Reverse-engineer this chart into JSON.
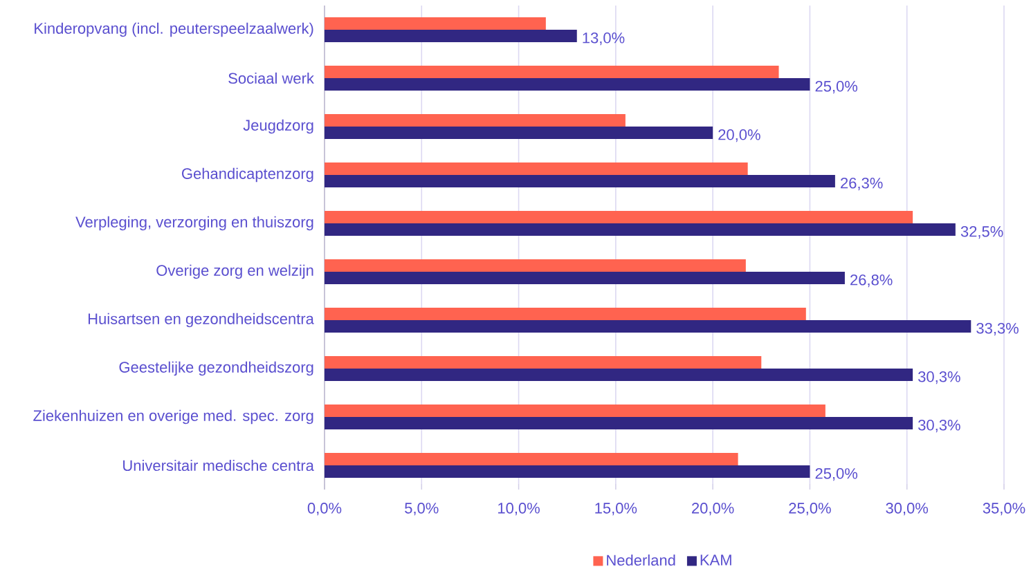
{
  "chart_data": {
    "type": "bar",
    "orientation": "horizontal",
    "categories": [
      "Kinderopvang (incl. peuterspeelzaalwerk)",
      "Sociaal werk",
      "Jeugdzorg",
      "Gehandicaptenzorg",
      "Verpleging, verzorging en thuiszorg",
      "Overige zorg en welzijn",
      "Huisartsen en gezondheidscentra",
      "Geestelijke gezondheidszorg",
      "Ziekenhuizen en overige med. spec. zorg",
      "Universitair medische centra"
    ],
    "series": [
      {
        "name": "Nederland",
        "color": "#ff6350",
        "values": [
          11.4,
          23.4,
          15.5,
          21.8,
          30.3,
          21.7,
          24.8,
          22.5,
          25.8,
          21.3
        ]
      },
      {
        "name": "KAM",
        "color": "#312782",
        "values": [
          13.0,
          25.0,
          20.0,
          26.3,
          32.5,
          26.8,
          33.3,
          30.3,
          30.3,
          25.0
        ],
        "value_labels": [
          "13,0%",
          "25,0%",
          "20,0%",
          "26,3%",
          "32,5%",
          "26,8%",
          "33,3%",
          "30,3%",
          "30,3%",
          "25,0%"
        ]
      }
    ],
    "xlim": [
      0,
      35
    ],
    "xticks": [
      {
        "value": 0,
        "label": "0,0%"
      },
      {
        "value": 5,
        "label": "5,0%"
      },
      {
        "value": 10,
        "label": "10,0%"
      },
      {
        "value": 15,
        "label": "15,0%"
      },
      {
        "value": 20,
        "label": "20,0%"
      },
      {
        "value": 25,
        "label": "25,0%"
      },
      {
        "value": 30,
        "label": "30,0%"
      },
      {
        "value": 35,
        "label": "35,0%"
      }
    ],
    "grid": "x",
    "legend": "bottom"
  }
}
